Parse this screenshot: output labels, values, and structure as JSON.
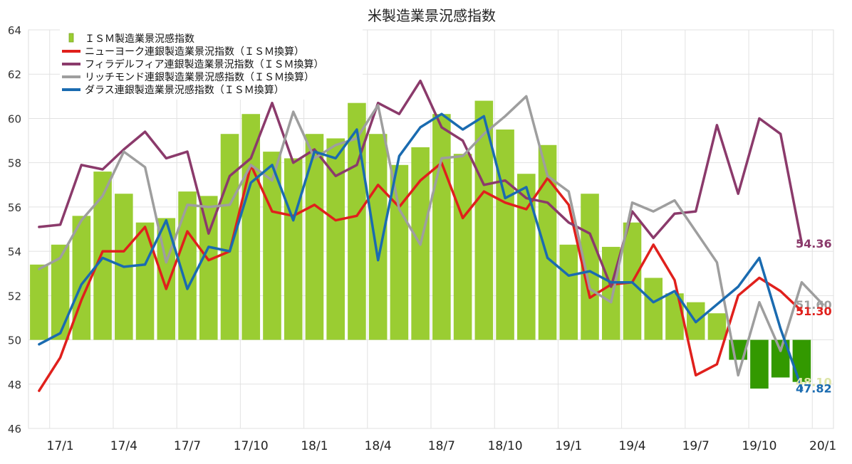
{
  "chart_data": {
    "type": "bar",
    "title": "米製造業景況感指数",
    "xlabel": "",
    "ylabel": "",
    "ylim": [
      46,
      64
    ],
    "yticks": [
      46,
      48,
      50,
      52,
      54,
      56,
      58,
      60,
      62,
      64
    ],
    "baseline": 50,
    "grid": true,
    "legend_position": "top-left",
    "categories": [
      "2016-12",
      "2017-01",
      "2017-02",
      "2017-03",
      "2017-04",
      "2017-05",
      "2017-06",
      "2017-07",
      "2017-08",
      "2017-09",
      "2017-10",
      "2017-11",
      "2017-12",
      "2018-01",
      "2018-02",
      "2018-03",
      "2018-04",
      "2018-05",
      "2018-06",
      "2018-07",
      "2018-08",
      "2018-09",
      "2018-10",
      "2018-11",
      "2018-12",
      "2019-01",
      "2019-02",
      "2019-03",
      "2019-04",
      "2019-05",
      "2019-06",
      "2019-07",
      "2019-08",
      "2019-09",
      "2019-10",
      "2019-11",
      "2019-12",
      "2020-01"
    ],
    "x_tick_labels": [
      {
        "category": "2017-01",
        "label": "17/1"
      },
      {
        "category": "2017-04",
        "label": "17/4"
      },
      {
        "category": "2017-07",
        "label": "17/7"
      },
      {
        "category": "2017-10",
        "label": "17/10"
      },
      {
        "category": "2018-01",
        "label": "18/1"
      },
      {
        "category": "2018-04",
        "label": "18/4"
      },
      {
        "category": "2018-07",
        "label": "18/7"
      },
      {
        "category": "2018-10",
        "label": "18/10"
      },
      {
        "category": "2019-01",
        "label": "19/1"
      },
      {
        "category": "2019-04",
        "label": "19/4"
      },
      {
        "category": "2019-07",
        "label": "19/7"
      },
      {
        "category": "2019-10",
        "label": "19/10"
      },
      {
        "category": "2020-01",
        "label": "20/1"
      }
    ],
    "bar_series": {
      "name": "ＩＳＭ製造業景況感指数",
      "color": "#9acd32",
      "below_baseline_color": "#339900",
      "values": [
        53.4,
        54.3,
        55.6,
        57.6,
        56.6,
        55.3,
        55.5,
        56.7,
        56.5,
        59.3,
        60.2,
        58.5,
        58.2,
        59.3,
        59.1,
        60.7,
        59.3,
        57.9,
        58.7,
        60.2,
        58.4,
        60.8,
        59.5,
        57.5,
        58.8,
        54.3,
        56.6,
        54.2,
        55.3,
        52.8,
        52.1,
        51.7,
        51.2,
        49.1,
        47.8,
        48.3,
        48.1,
        null
      ]
    },
    "series": [
      {
        "name": "ニューヨーク連銀製造業景況指数（ＩＳＭ換算）",
        "color": "#e0201c",
        "values": [
          47.7,
          49.2,
          51.8,
          54.0,
          54.0,
          55.1,
          52.3,
          54.9,
          53.6,
          54.0,
          57.9,
          55.8,
          55.6,
          56.1,
          55.4,
          55.6,
          57.0,
          56.0,
          57.2,
          58.0,
          55.5,
          56.7,
          56.2,
          55.9,
          57.3,
          56.1,
          51.9,
          52.5,
          52.6,
          54.3,
          52.7,
          48.4,
          48.9,
          52.0,
          52.8,
          52.2,
          51.3,
          null
        ]
      },
      {
        "name": "フィラデルフィア連銀製造業景況指数（ＩＳＭ換算）",
        "color": "#8b3a6b",
        "values": [
          55.1,
          55.2,
          57.9,
          57.7,
          58.6,
          59.4,
          58.2,
          58.5,
          54.8,
          57.4,
          58.2,
          60.7,
          58.0,
          58.6,
          57.4,
          57.9,
          60.7,
          60.2,
          61.7,
          59.6,
          59.0,
          57.0,
          57.2,
          56.4,
          56.2,
          55.3,
          54.8,
          52.4,
          55.8,
          54.6,
          55.7,
          55.8,
          59.7,
          56.6,
          60.0,
          59.3,
          54.36,
          null
        ]
      },
      {
        "name": "リッチモンド連銀製造業景況感指数（ＩＳＭ換算）",
        "color": "#9e9e9e",
        "values": [
          53.2,
          53.7,
          55.4,
          56.5,
          58.5,
          57.8,
          53.5,
          56.1,
          56.0,
          56.1,
          57.9,
          57.2,
          60.3,
          58.2,
          58.8,
          59.1,
          60.6,
          55.9,
          54.3,
          58.2,
          58.3,
          59.3,
          60.1,
          61.0,
          57.4,
          56.7,
          52.3,
          51.7,
          56.2,
          55.8,
          56.3,
          54.9,
          53.5,
          48.4,
          51.7,
          49.5,
          52.6,
          51.6
        ]
      },
      {
        "name": "ダラス連銀製造業景況感指数（ＩＳＭ換算）",
        "color": "#1a6bb0",
        "values": [
          49.8,
          50.3,
          52.5,
          53.7,
          53.3,
          53.4,
          55.4,
          52.3,
          54.2,
          54.0,
          57.1,
          57.9,
          55.4,
          58.5,
          58.2,
          59.5,
          53.6,
          58.3,
          59.6,
          60.2,
          59.5,
          60.1,
          56.4,
          56.9,
          53.7,
          52.9,
          53.1,
          52.6,
          52.6,
          51.7,
          52.2,
          50.8,
          51.6,
          52.4,
          53.7,
          50.5,
          47.82,
          null
        ]
      }
    ],
    "end_labels": [
      {
        "text": "54.36",
        "value": 54.36,
        "color": "#8b3a6b"
      },
      {
        "text": "51.60",
        "value": 51.6,
        "color": "#9e9e9e"
      },
      {
        "text": "51.30",
        "value": 51.3,
        "color": "#e0201c"
      },
      {
        "text": "48.10",
        "value": 48.1,
        "color": "#dde5a8"
      },
      {
        "text": "47.82",
        "value": 47.82,
        "color": "#1a6bb0"
      }
    ]
  }
}
